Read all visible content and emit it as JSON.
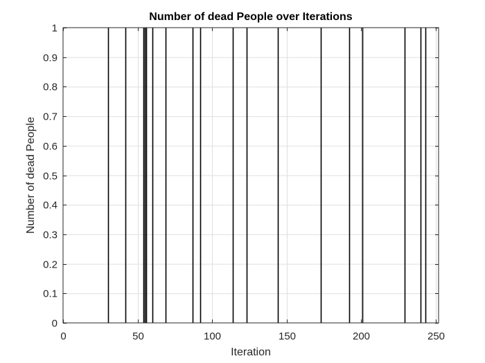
{
  "chart_data": {
    "type": "bar",
    "title": "Number of dead People over Iterations",
    "xlabel": "Iteration",
    "ylabel": "Number of dead People",
    "xlim": [
      0,
      252
    ],
    "ylim": [
      0,
      1
    ],
    "xticks": [
      0,
      50,
      100,
      150,
      200,
      250
    ],
    "yticks": [
      0,
      0.1,
      0.2,
      0.3,
      0.4,
      0.5,
      0.6,
      0.7,
      0.8,
      0.9,
      1
    ],
    "grid": true,
    "series": [
      {
        "x": [
          30,
          42,
          54,
          55,
          56,
          60,
          69,
          87,
          92,
          114,
          123,
          144,
          173,
          192,
          201,
          229,
          240,
          243
        ],
        "values": [
          1,
          1,
          1,
          1,
          1,
          1,
          1,
          1,
          1,
          1,
          1,
          1,
          1,
          1,
          1,
          1,
          1,
          1
        ]
      }
    ],
    "colors": {
      "bar": "#000000",
      "grid": "#dfdfdf",
      "axis": "#262626"
    }
  }
}
